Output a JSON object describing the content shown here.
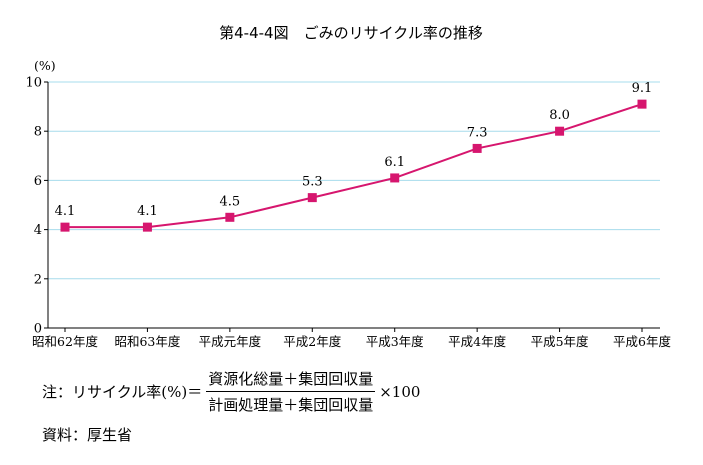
{
  "chart_data": {
    "type": "line",
    "title": "第4-4-4図　ごみのリサイクル率の推移",
    "ylabel": "(%)",
    "xlabel": "",
    "ylim": [
      0,
      10
    ],
    "yticks": [
      "0",
      "2",
      "4",
      "6",
      "8",
      "10"
    ],
    "grid": true,
    "categories": [
      "昭和62年度",
      "昭和63年度",
      "平成元年度",
      "平成2年度",
      "平成3年度",
      "平成4年度",
      "平成5年度",
      "平成6年度"
    ],
    "series": [
      {
        "values": [
          4.1,
          4.1,
          4.5,
          5.3,
          6.1,
          7.3,
          8.0,
          9.1
        ],
        "labels": [
          "4.1",
          "4.1",
          "4.5",
          "5.3",
          "6.1",
          "7.3",
          "8.0",
          "9.1"
        ]
      }
    ],
    "colors": {
      "line": "#d6166e",
      "grid": "#a7dcec"
    }
  },
  "note": {
    "prefix": "注：リサイクル率(%)＝",
    "numerator": "資源化総量＋集団回収量",
    "denominator": "計画処理量＋集団回収量",
    "suffix": "×100"
  },
  "source": "資料：厚生省"
}
